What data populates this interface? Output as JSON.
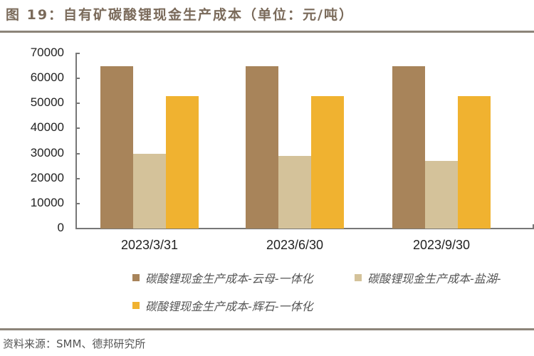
{
  "header": {
    "title": "图 19：自有矿碳酸锂现金生产成本（单位：元/吨）"
  },
  "footer": {
    "source": "资料来源：SMM、德邦研究所"
  },
  "chart_data": {
    "type": "bar",
    "title": "图 19：自有矿碳酸锂现金生产成本（单位：元/吨）",
    "xlabel": "",
    "ylabel": "",
    "ylim": [
      0,
      70000
    ],
    "yticks": [
      "0",
      "10000",
      "20000",
      "30000",
      "40000",
      "50000",
      "60000",
      "70000"
    ],
    "grid": false,
    "legend_position": "bottom",
    "categories": [
      "2023/3/31",
      "2023/6/30",
      "2023/9/30"
    ],
    "series": [
      {
        "name": "碳酸锂现金生产成本-云母-一体化",
        "color": "#A8845A",
        "values": [
          65000,
          65000,
          65000
        ]
      },
      {
        "name": "碳酸锂现金生产成本-盐湖-",
        "color": "#D4C29A",
        "values": [
          30000,
          29000,
          27000
        ]
      },
      {
        "name": "碳酸锂现金生产成本-辉石-一体化",
        "color": "#F0B230",
        "values": [
          53000,
          53000,
          53000
        ]
      }
    ]
  }
}
